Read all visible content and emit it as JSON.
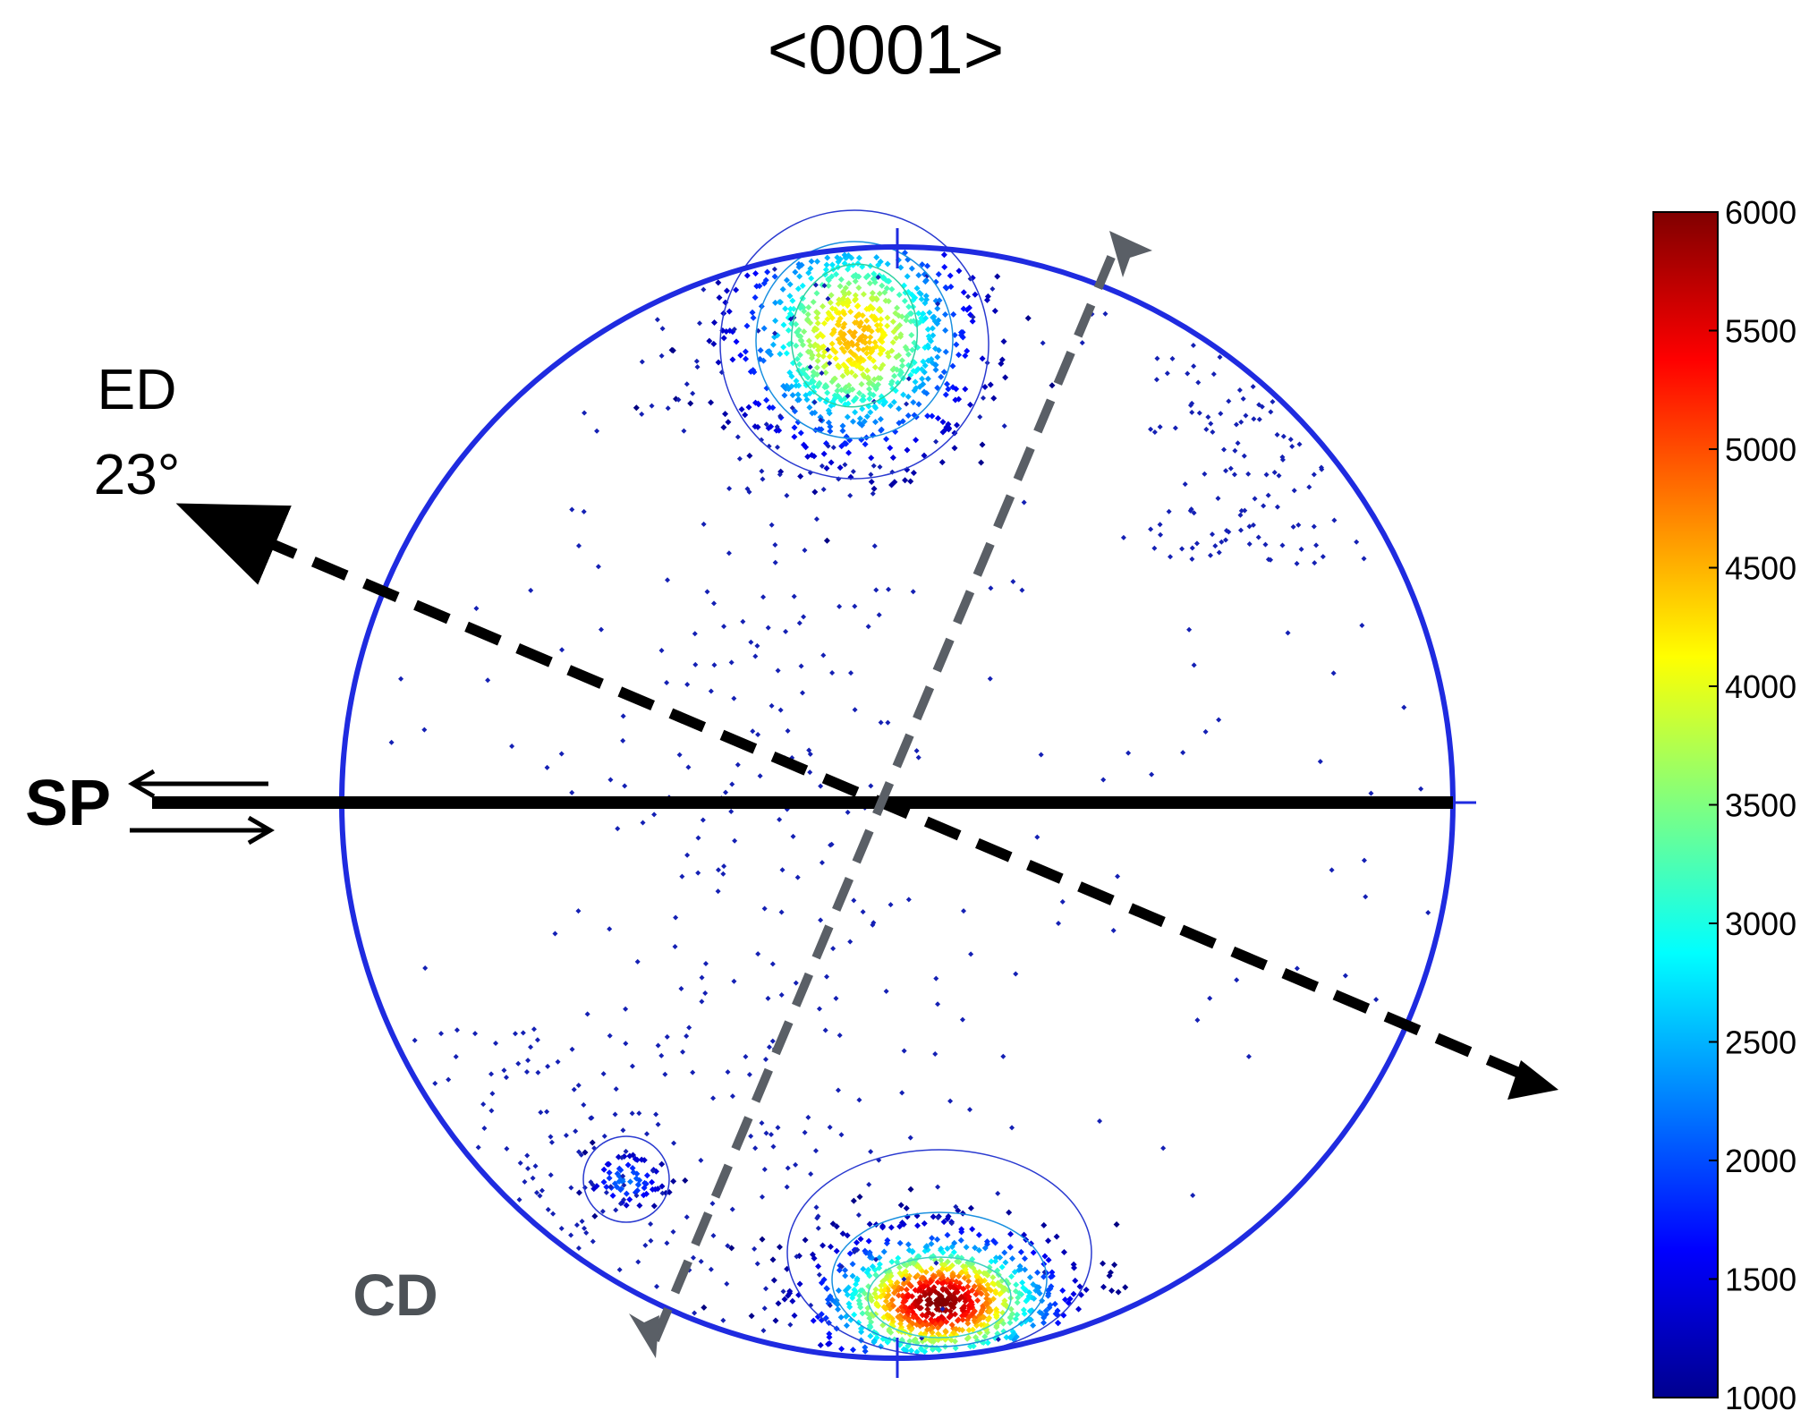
{
  "chart_data": {
    "type": "scatter",
    "subtype": "pole-figure",
    "title": "<0001>",
    "labels": {
      "ed": "ED",
      "ed_angle": "23°",
      "sp": "SP",
      "cd": "CD"
    },
    "colorbar": {
      "min": 1000,
      "max": 6000,
      "ticks": [
        "6000",
        "5500",
        "5000",
        "4500",
        "4000",
        "3500",
        "3000",
        "2500",
        "2000",
        "1500",
        "1000"
      ],
      "colormap": "jet"
    },
    "clusters": [
      {
        "region": "top",
        "peak_density": 4500
      },
      {
        "region": "bottom",
        "peak_density": 6000
      },
      {
        "region": "lower-left",
        "peak_density": 2200
      }
    ],
    "colors": {
      "circle": "#1f2be0",
      "scatter_low": "#1420b4",
      "ed_arrow": "#000000",
      "cd_arrow": "#5a5f66",
      "cd_label": "#4d5257"
    }
  }
}
